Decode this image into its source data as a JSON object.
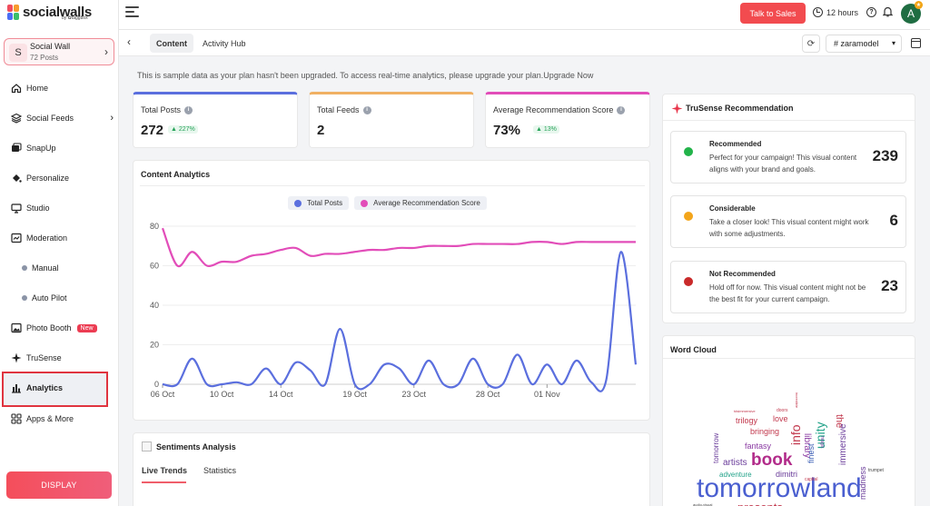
{
  "brand": {
    "name": "socialwalls",
    "sub": "by ✿taggbox"
  },
  "wall": {
    "avatar_letter": "S",
    "name": "Social Wall",
    "posts": "72 Posts"
  },
  "nav": {
    "home": "Home",
    "social_feeds": "Social Feeds",
    "snapup": "SnapUp",
    "personalize": "Personalize",
    "studio": "Studio",
    "moderation": "Moderation",
    "manual": "Manual",
    "auto_pilot": "Auto Pilot",
    "photo_booth": "Photo Booth",
    "new_badge": "New",
    "trusense": "TruSense",
    "analytics": "Analytics",
    "apps_more": "Apps & More"
  },
  "display_button": "DISPLAY",
  "topbar": {
    "talk_to_sales": "Talk to Sales",
    "hours": "12 hours",
    "user_initial": "A"
  },
  "tabs": {
    "content": "Content",
    "activity_hub": "Activity Hub"
  },
  "hashtag_select": "# zaramodel",
  "notice": "This is sample data as your plan hasn't been upgraded. To access real-time analytics, please upgrade your plan.Upgrade Now",
  "stats": {
    "total_posts": {
      "label": "Total Posts",
      "value": "272",
      "delta": "227%"
    },
    "total_feeds": {
      "label": "Total Feeds",
      "value": "2"
    },
    "avg_score": {
      "label": "Average Recommendation Score",
      "value": "73%",
      "delta": "13%"
    }
  },
  "content_analytics": {
    "title": "Content Analytics"
  },
  "chart_data": {
    "type": "line",
    "title": "",
    "xlabel": "",
    "ylabel": "",
    "ylim": [
      0,
      80
    ],
    "yticks": [
      "0",
      "20",
      "40",
      "60",
      "80"
    ],
    "xticks": [
      "06 Oct",
      "10 Oct",
      "14 Oct",
      "19 Oct",
      "23 Oct",
      "28 Oct",
      "01 Nov"
    ],
    "x_index_range": [
      0,
      31
    ],
    "legend_position": "top-center",
    "series": [
      {
        "name": "Total Posts",
        "color": "#5b6fde",
        "values": [
          0,
          0,
          13,
          0,
          0,
          1,
          0,
          8,
          0,
          11,
          7,
          0,
          28,
          0,
          0,
          10,
          8,
          0,
          12,
          0,
          0,
          13,
          0,
          0,
          15,
          0,
          10,
          0,
          12,
          1,
          2,
          67,
          10
        ]
      },
      {
        "name": "Average Recommendation Score",
        "color": "#e24db9",
        "values": [
          79,
          60,
          67,
          60,
          62,
          62,
          65,
          66,
          68,
          69,
          65,
          66,
          66,
          67,
          68,
          68,
          69,
          69,
          70,
          70,
          70,
          71,
          71,
          71,
          71,
          72,
          72,
          71,
          72,
          72,
          72,
          72,
          72
        ]
      }
    ]
  },
  "trusense": {
    "title": "TruSense Recommendation",
    "items": [
      {
        "title": "Recommended",
        "desc": "Perfect for your campaign! This visual content aligns with your brand and goals.",
        "count": "239",
        "color": "#22b34a"
      },
      {
        "title": "Considerable",
        "desc": "Take a closer look! This visual content might work with some adjustments.",
        "count": "6",
        "color": "#f3a51b"
      },
      {
        "title": "Not Recommended",
        "desc": "Hold off for now. This visual content might not be the best fit for your current campaign.",
        "count": "23",
        "color": "#c92a2a"
      }
    ]
  },
  "word_cloud": {
    "title": "Word Cloud",
    "words": [
      "tomorrowland",
      "book",
      "unity",
      "info",
      "library",
      "the",
      "immersive",
      "madness",
      "finest",
      "love",
      "trilogy",
      "bringing",
      "fantasy",
      "artists",
      "adventure",
      "dimitri",
      "tomorrow",
      "presents",
      "doors",
      "trumpet",
      "capital",
      "magic",
      "tdsimmersive",
      "audio-visual",
      "incredible"
    ]
  },
  "sentiments": {
    "title": "Sentiments Analysis",
    "tab_live": "Live Trends",
    "tab_stats": "Statistics"
  }
}
